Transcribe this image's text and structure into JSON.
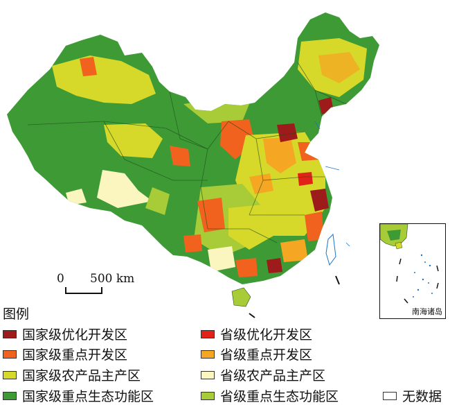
{
  "scalebar": {
    "zero": "0",
    "label": "500 km"
  },
  "legend": {
    "title": "图例",
    "items": [
      {
        "label": "国家级优化开发区",
        "color": "#9e1b1b"
      },
      {
        "label": "省级优化开发区",
        "color": "#e02218"
      },
      {
        "label": "国家级重点开发区",
        "color": "#f0621e"
      },
      {
        "label": "省级重点开发区",
        "color": "#f5a623"
      },
      {
        "label": "国家级农产品主产区",
        "color": "#d6d92a"
      },
      {
        "label": "省级农产品主产区",
        "color": "#fbf5c0"
      },
      {
        "label": "国家级重点生态功能区",
        "color": "#3d9a35"
      },
      {
        "label": "省级重点生态功能区",
        "color": "#a7cc37"
      },
      {
        "label": "无数据",
        "color": "#ffffff"
      }
    ]
  },
  "inset": {
    "label": "南海诸岛"
  }
}
